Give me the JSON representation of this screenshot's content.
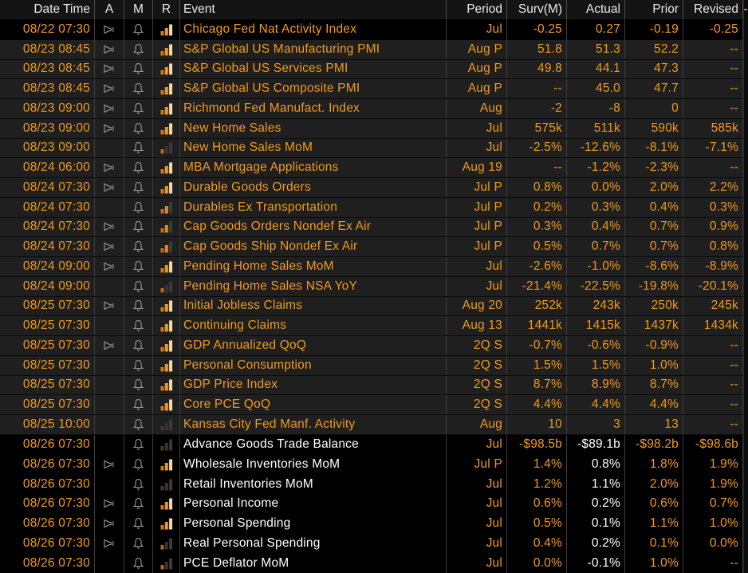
{
  "table": {
    "columns": [
      "Date Time",
      "A",
      "M",
      "R",
      "Event",
      "Period",
      "Surv(M)",
      "Actual",
      "Prior",
      "Revised"
    ],
    "rows": [
      {
        "date": "08/22 07:30",
        "audio": true,
        "alarm": true,
        "relevance": "high",
        "event": "Chicago Fed Nat Activity Index",
        "period": "Jul",
        "surv": "-0.25",
        "actual": "0.27",
        "prior": "-0.19",
        "revised": "-0.25",
        "style": "selected"
      },
      {
        "date": "08/23 08:45",
        "audio": true,
        "alarm": true,
        "relevance": "high",
        "event": "S&P Global US Manufacturing PMI",
        "period": "Aug P",
        "surv": "51.8",
        "actual": "51.3",
        "prior": "52.2",
        "revised": "--",
        "style": "normal"
      },
      {
        "date": "08/23 08:45",
        "audio": true,
        "alarm": true,
        "relevance": "high",
        "event": "S&P Global US Services PMI",
        "period": "Aug P",
        "surv": "49.8",
        "actual": "44.1",
        "prior": "47.3",
        "revised": "--",
        "style": "normal"
      },
      {
        "date": "08/23 08:45",
        "audio": true,
        "alarm": true,
        "relevance": "high",
        "event": "S&P Global US Composite PMI",
        "period": "Aug P",
        "surv": "--",
        "actual": "45.0",
        "prior": "47.7",
        "revised": "--",
        "style": "normal"
      },
      {
        "date": "08/23 09:00",
        "audio": true,
        "alarm": true,
        "relevance": "high",
        "event": "Richmond Fed Manufact. Index",
        "period": "Aug",
        "surv": "-2",
        "actual": "-8",
        "prior": "0",
        "revised": "--",
        "style": "normal"
      },
      {
        "date": "08/23 09:00",
        "audio": true,
        "alarm": true,
        "relevance": "high",
        "event": "New Home Sales",
        "period": "Jul",
        "surv": "575k",
        "actual": "511k",
        "prior": "590k",
        "revised": "585k",
        "style": "normal"
      },
      {
        "date": "08/23 09:00",
        "audio": false,
        "alarm": true,
        "relevance": "low",
        "event": "New Home Sales MoM",
        "period": "Jul",
        "surv": "-2.5%",
        "actual": "-12.6%",
        "prior": "-8.1%",
        "revised": "-7.1%",
        "style": "normal"
      },
      {
        "date": "08/24 06:00",
        "audio": true,
        "alarm": true,
        "relevance": "high",
        "event": "MBA Mortgage Applications",
        "period": "Aug 19",
        "surv": "--",
        "actual": "-1.2%",
        "prior": "-2.3%",
        "revised": "--",
        "style": "normal"
      },
      {
        "date": "08/24 07:30",
        "audio": true,
        "alarm": true,
        "relevance": "high",
        "event": "Durable Goods Orders",
        "period": "Jul P",
        "surv": "0.8%",
        "actual": "0.0%",
        "prior": "2.0%",
        "revised": "2.2%",
        "style": "normal"
      },
      {
        "date": "08/24 07:30",
        "audio": false,
        "alarm": true,
        "relevance": "med",
        "event": "Durables Ex Transportation",
        "period": "Jul P",
        "surv": "0.2%",
        "actual": "0.3%",
        "prior": "0.4%",
        "revised": "0.3%",
        "style": "normal"
      },
      {
        "date": "08/24 07:30",
        "audio": true,
        "alarm": true,
        "relevance": "med",
        "event": "Cap Goods Orders Nondef Ex Air",
        "period": "Jul P",
        "surv": "0.3%",
        "actual": "0.4%",
        "prior": "0.7%",
        "revised": "0.9%",
        "style": "normal"
      },
      {
        "date": "08/24 07:30",
        "audio": true,
        "alarm": true,
        "relevance": "med",
        "event": "Cap Goods Ship Nondef Ex Air",
        "period": "Jul P",
        "surv": "0.5%",
        "actual": "0.7%",
        "prior": "0.7%",
        "revised": "0.8%",
        "style": "normal"
      },
      {
        "date": "08/24 09:00",
        "audio": true,
        "alarm": true,
        "relevance": "high",
        "event": "Pending Home Sales MoM",
        "period": "Jul",
        "surv": "-2.6%",
        "actual": "-1.0%",
        "prior": "-8.6%",
        "revised": "-8.9%",
        "style": "normal"
      },
      {
        "date": "08/24 09:00",
        "audio": false,
        "alarm": true,
        "relevance": "low",
        "event": "Pending Home Sales NSA YoY",
        "period": "Jul",
        "surv": "-21.4%",
        "actual": "-22.5%",
        "prior": "-19.8%",
        "revised": "-20.1%",
        "style": "normal"
      },
      {
        "date": "08/25 07:30",
        "audio": true,
        "alarm": true,
        "relevance": "high",
        "event": "Initial Jobless Claims",
        "period": "Aug 20",
        "surv": "252k",
        "actual": "243k",
        "prior": "250k",
        "revised": "245k",
        "style": "normal"
      },
      {
        "date": "08/25 07:30",
        "audio": false,
        "alarm": true,
        "relevance": "high",
        "event": "Continuing Claims",
        "period": "Aug 13",
        "surv": "1441k",
        "actual": "1415k",
        "prior": "1437k",
        "revised": "1434k",
        "style": "normal"
      },
      {
        "date": "08/25 07:30",
        "audio": true,
        "alarm": true,
        "relevance": "high",
        "event": "GDP Annualized QoQ",
        "period": "2Q S",
        "surv": "-0.7%",
        "actual": "-0.6%",
        "prior": "-0.9%",
        "revised": "--",
        "style": "normal"
      },
      {
        "date": "08/25 07:30",
        "audio": false,
        "alarm": true,
        "relevance": "high",
        "event": "Personal Consumption",
        "period": "2Q S",
        "surv": "1.5%",
        "actual": "1.5%",
        "prior": "1.0%",
        "revised": "--",
        "style": "normal"
      },
      {
        "date": "08/25 07:30",
        "audio": false,
        "alarm": true,
        "relevance": "high",
        "event": "GDP Price Index",
        "period": "2Q S",
        "surv": "8.7%",
        "actual": "8.9%",
        "prior": "8.7%",
        "revised": "--",
        "style": "normal"
      },
      {
        "date": "08/25 07:30",
        "audio": false,
        "alarm": true,
        "relevance": "high",
        "event": "Core PCE QoQ",
        "period": "2Q S",
        "surv": "4.4%",
        "actual": "4.4%",
        "prior": "4.4%",
        "revised": "--",
        "style": "normal"
      },
      {
        "date": "08/25 10:00",
        "audio": false,
        "alarm": true,
        "relevance": "none",
        "event": "Kansas City Fed Manf. Activity",
        "period": "Aug",
        "surv": "10",
        "actual": "3",
        "prior": "13",
        "revised": "--",
        "style": "normal"
      },
      {
        "date": "08/26 07:30",
        "audio": false,
        "alarm": true,
        "relevance": "none",
        "event": "Advance Goods Trade Balance",
        "period": "Jul",
        "surv": "-$98.5b",
        "actual": "-$89.1b",
        "prior": "-$98.2b",
        "revised": "-$98.6b",
        "style": "today"
      },
      {
        "date": "08/26 07:30",
        "audio": true,
        "alarm": true,
        "relevance": "high",
        "event": "Wholesale Inventories MoM",
        "period": "Jul P",
        "surv": "1.4%",
        "actual": "0.8%",
        "prior": "1.8%",
        "revised": "1.9%",
        "style": "today"
      },
      {
        "date": "08/26 07:30",
        "audio": false,
        "alarm": true,
        "relevance": "none",
        "event": "Retail Inventories MoM",
        "period": "Jul",
        "surv": "1.2%",
        "actual": "1.1%",
        "prior": "2.0%",
        "revised": "1.9%",
        "style": "today"
      },
      {
        "date": "08/26 07:30",
        "audio": true,
        "alarm": true,
        "relevance": "high",
        "event": "Personal Income",
        "period": "Jul",
        "surv": "0.6%",
        "actual": "0.2%",
        "prior": "0.6%",
        "revised": "0.7%",
        "style": "today"
      },
      {
        "date": "08/26 07:30",
        "audio": true,
        "alarm": true,
        "relevance": "high",
        "event": "Personal Spending",
        "period": "Jul",
        "surv": "0.5%",
        "actual": "0.1%",
        "prior": "1.1%",
        "revised": "1.0%",
        "style": "today"
      },
      {
        "date": "08/26 07:30",
        "audio": true,
        "alarm": true,
        "relevance": "low",
        "event": "Real Personal Spending",
        "period": "Jul",
        "surv": "0.4%",
        "actual": "0.2%",
        "prior": "0.1%",
        "revised": "0.0%",
        "style": "today"
      },
      {
        "date": "08/26 07:30",
        "audio": false,
        "alarm": true,
        "relevance": "low",
        "event": "PCE Deflator MoM",
        "period": "Jul",
        "surv": "0.0%",
        "actual": "-0.1%",
        "prior": "1.0%",
        "revised": "--",
        "style": "today"
      }
    ]
  },
  "icons": {
    "audio_icon_name": "speaker-icon",
    "alarm_icon_name": "bell-icon",
    "relevance_icon_name": "relevance-bars-icon",
    "icon_stroke_color": "#9a9a9a",
    "relevance_colors": {
      "high": [
        "#cf7c18",
        "#e89a20",
        "#f5d9a6"
      ],
      "med": [
        "#c06f12",
        "#df8a1c",
        "#3b3b3b"
      ],
      "low": [
        "#b96a10",
        "#353535",
        "#3b3b3b"
      ],
      "none": [
        "#4d3a1e",
        "#343434",
        "#3a3a3a"
      ]
    }
  },
  "colors": {
    "accent_orange": "#f29b1d",
    "released_text": "#f29b1d",
    "today_text": "#ffffff",
    "header_text": "#eaeaea",
    "row_bg": "#1f1f1f",
    "today_row_bg": "#000000",
    "header_bg": "#141414",
    "divider": "#3d3d3d",
    "scroll_dash": "#d07a1a"
  }
}
